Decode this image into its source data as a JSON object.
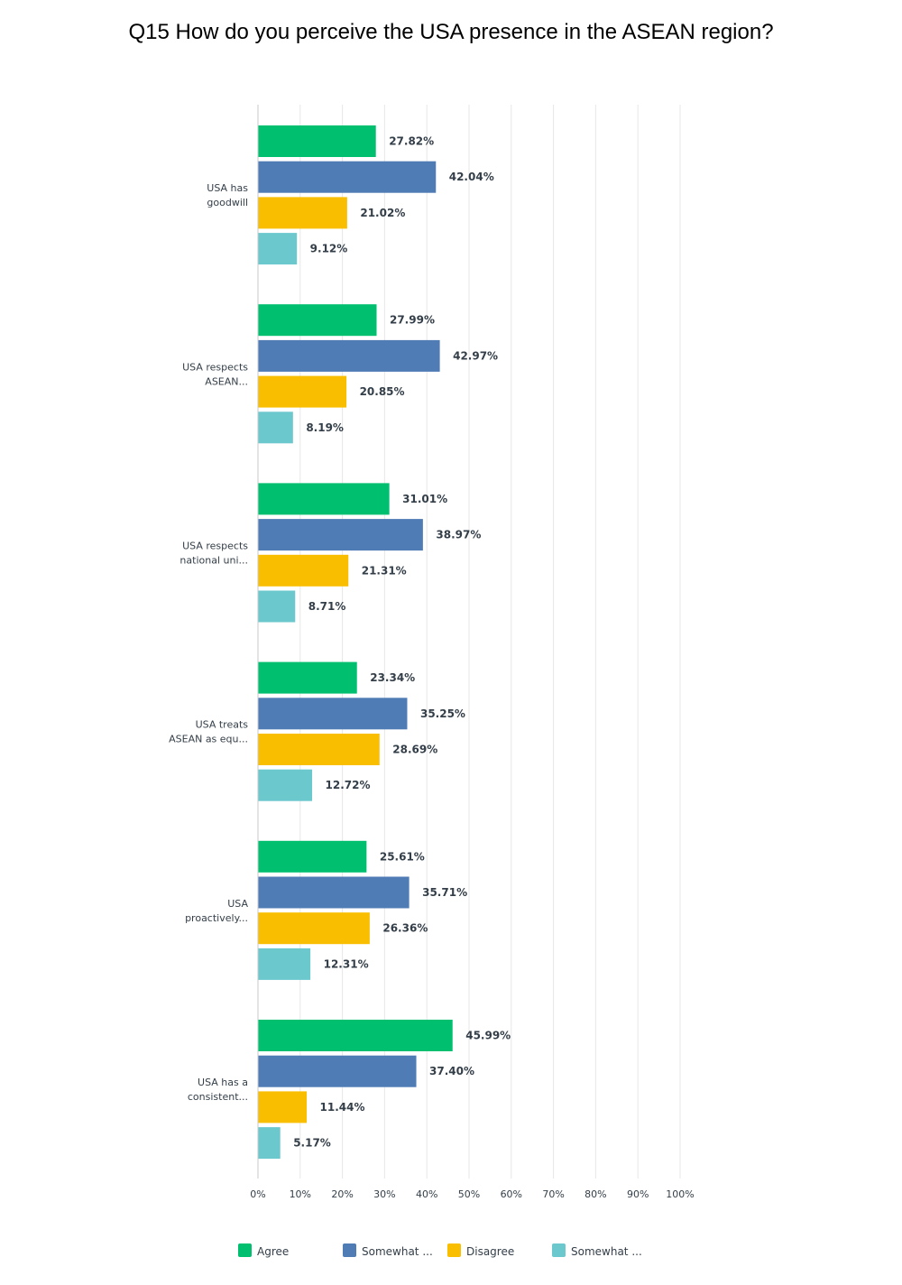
{
  "chart_data": {
    "type": "bar",
    "orientation": "horizontal",
    "title": "Q15 How do you perceive the USA presence in the ASEAN region?",
    "categories": [
      [
        "USA has",
        "goodwill"
      ],
      [
        "USA respects",
        "ASEAN..."
      ],
      [
        "USA respects",
        "national uni..."
      ],
      [
        "USA treats",
        "ASEAN as equ..."
      ],
      [
        "USA",
        "proactively..."
      ],
      [
        "USA has a",
        "consistent..."
      ]
    ],
    "series": [
      {
        "name": "Agree",
        "color": "#00bf6f",
        "values": [
          27.82,
          27.99,
          31.01,
          23.34,
          25.61,
          45.99
        ],
        "labels": [
          "27.82%",
          "27.99%",
          "31.01%",
          "23.34%",
          "25.61%",
          "45.99%"
        ]
      },
      {
        "name": "Somewhat ...",
        "color": "#507cb6",
        "values": [
          42.04,
          42.97,
          38.97,
          35.25,
          35.71,
          37.4
        ],
        "labels": [
          "42.04%",
          "42.97%",
          "38.97%",
          "35.25%",
          "35.71%",
          "37.40%"
        ]
      },
      {
        "name": "Disagree",
        "color": "#f9be00",
        "values": [
          21.02,
          20.85,
          21.31,
          28.69,
          26.36,
          11.44
        ],
        "labels": [
          "21.02%",
          "20.85%",
          "21.31%",
          "28.69%",
          "26.36%",
          "11.44%"
        ]
      },
      {
        "name": "Somewhat ...",
        "color": "#6bc8cd",
        "values": [
          9.12,
          8.19,
          8.71,
          12.72,
          12.31,
          5.17
        ],
        "labels": [
          "9.12%",
          "8.19%",
          "8.71%",
          "12.72%",
          "12.31%",
          "5.17%"
        ]
      }
    ],
    "xlim": [
      0,
      100
    ],
    "xticks": [
      "0%",
      "10%",
      "20%",
      "30%",
      "40%",
      "50%",
      "60%",
      "70%",
      "80%",
      "90%",
      "100%"
    ],
    "grid": true,
    "legend_position": "bottom"
  }
}
